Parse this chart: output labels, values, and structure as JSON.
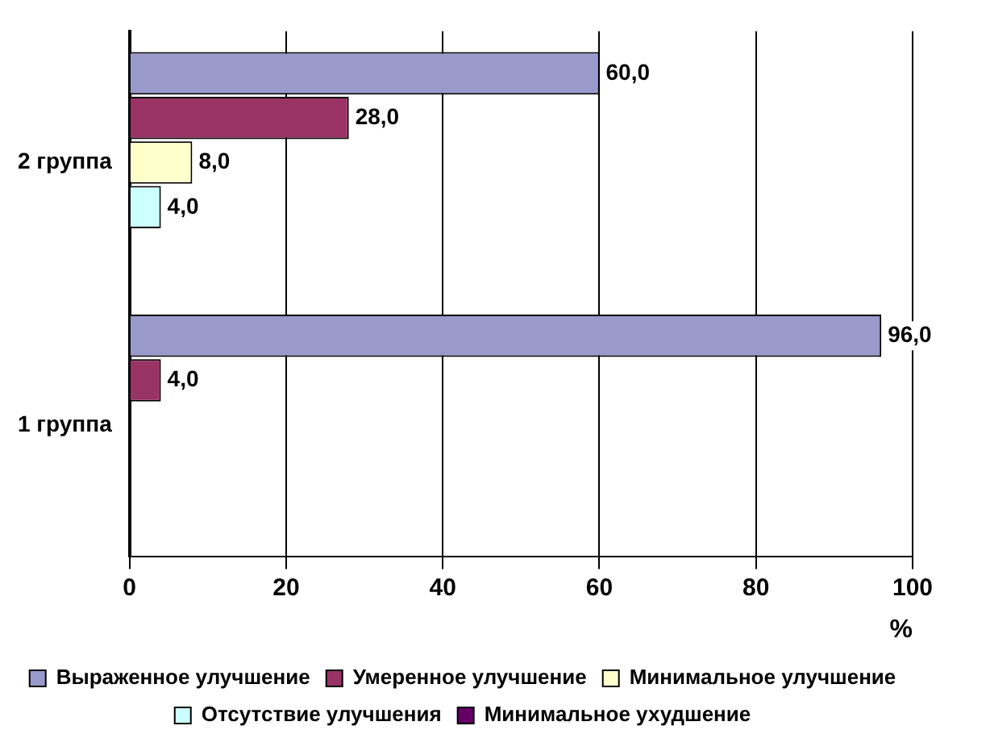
{
  "chart_data": {
    "type": "bar",
    "orientation": "horizontal",
    "categories": [
      "2 группа",
      "1 группа"
    ],
    "xlabel": "%",
    "xlim": [
      0,
      100
    ],
    "xticks": [
      0,
      20,
      40,
      60,
      80,
      100
    ],
    "grid": "x",
    "legend": "bottom",
    "series": [
      {
        "name": "Выраженное улучшение",
        "color": "#9999cc",
        "values": [
          60,
          96
        ],
        "value_labels": [
          "60,0",
          "96,0"
        ]
      },
      {
        "name": "Умеренное улучшение",
        "color": "#993366",
        "values": [
          28,
          4
        ],
        "value_labels": [
          "28,0",
          "4,0"
        ]
      },
      {
        "name": "Минимальное улучшение",
        "color": "#ffffcc",
        "values": [
          8,
          0
        ],
        "value_labels": [
          "8,0",
          null
        ]
      },
      {
        "name": "Отсутствие улучшения",
        "color": "#ccffff",
        "values": [
          4,
          0
        ],
        "value_labels": [
          "4,0",
          null
        ]
      },
      {
        "name": "Минимальное ухудшение",
        "color": "#660066",
        "values": [
          0,
          0
        ],
        "value_labels": [
          null,
          null
        ]
      }
    ]
  }
}
